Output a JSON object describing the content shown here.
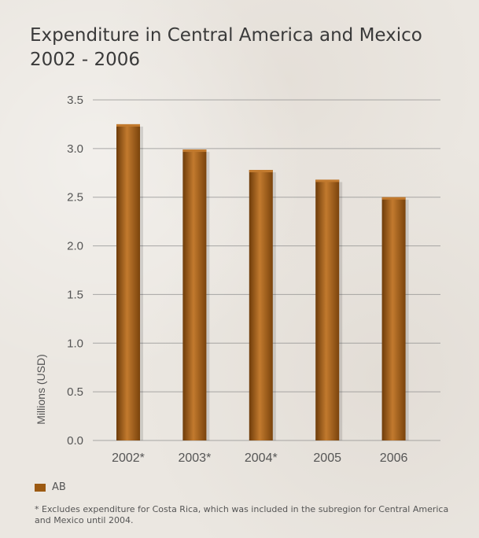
{
  "title_line1": "Expenditure in Central America and Mexico",
  "title_line2": "2002 - 2006",
  "legend_label": "AB",
  "footnote": "* Excludes expenditure for Costa Rica, which was included in the subregion for Central America and Mexico until 2004.",
  "colors": {
    "bar": "#9c5a12",
    "bar_light": "#c27a2e",
    "bar_dark": "#6e3c0a",
    "grid": "#8a8a8a"
  },
  "chart_data": {
    "type": "bar",
    "categories": [
      "2002*",
      "2003*",
      "2004*",
      "2005",
      "2006"
    ],
    "values": [
      3.25,
      2.99,
      2.78,
      2.68,
      2.5
    ],
    "series": [
      {
        "name": "AB",
        "values": [
          3.25,
          2.99,
          2.78,
          2.68,
          2.5
        ]
      }
    ],
    "ylabel": "Millions (USD)",
    "ylim": [
      0,
      3.5
    ],
    "yticks": [
      "0.0",
      "0.5",
      "1.0",
      "1.5",
      "2.0",
      "2.5",
      "3.0",
      "3.5"
    ],
    "grid": true,
    "legend": "bottom-left"
  }
}
